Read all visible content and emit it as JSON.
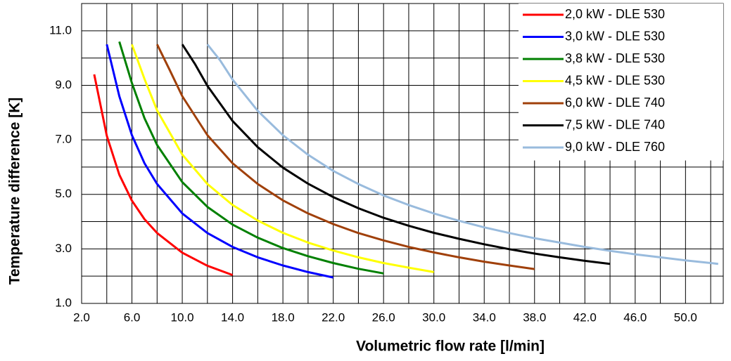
{
  "chart_data": {
    "type": "line",
    "x_label": "Volumetric flow rate [l/min]",
    "y_label": "Temperature difference [K]",
    "xlim": [
      2,
      53
    ],
    "ylim": [
      1,
      12
    ],
    "xticks": [
      {
        "value": 2,
        "label": "2.0"
      },
      {
        "value": 6,
        "label": "6.0"
      },
      {
        "value": 10,
        "label": "10.0"
      },
      {
        "value": 14,
        "label": "14.0"
      },
      {
        "value": 18,
        "label": "18.0"
      },
      {
        "value": 22,
        "label": "22.0"
      },
      {
        "value": 26,
        "label": "26.0"
      },
      {
        "value": 30,
        "label": "30.0"
      },
      {
        "value": 34,
        "label": "34.0"
      },
      {
        "value": 38,
        "label": "38.0"
      },
      {
        "value": 42,
        "label": "42.0"
      },
      {
        "value": 46,
        "label": "46.0"
      },
      {
        "value": 50,
        "label": "50.0"
      }
    ],
    "yticks": [
      {
        "value": 1,
        "label": "1.0"
      },
      {
        "value": 3,
        "label": "3.0"
      },
      {
        "value": 5,
        "label": "5.0"
      },
      {
        "value": 7,
        "label": "7.0"
      },
      {
        "value": 9,
        "label": "9.0"
      },
      {
        "value": 11,
        "label": "11.0"
      }
    ],
    "x_minor_ticks": [
      4,
      8,
      12,
      16,
      20,
      24,
      28,
      32,
      36,
      40,
      44,
      48,
      52
    ],
    "y_minor_ticks": [
      2,
      4,
      6,
      8,
      10
    ],
    "grid": true,
    "legend": "upper right",
    "series": [
      {
        "name": "2,0 kW - DLE 530",
        "color": "#ff0000",
        "x": [
          3,
          4,
          5,
          6,
          7,
          8,
          10,
          12,
          14
        ],
        "values": [
          9.4,
          7.15,
          5.72,
          4.77,
          4.09,
          3.58,
          2.86,
          2.38,
          2.04
        ]
      },
      {
        "name": "3,0 kW - DLE 530",
        "color": "#0000ff",
        "x": [
          4,
          5,
          6,
          7,
          8,
          10,
          12,
          14,
          16,
          18,
          20,
          22
        ],
        "values": [
          10.5,
          8.6,
          7.17,
          6.14,
          5.38,
          4.3,
          3.58,
          3.07,
          2.69,
          2.39,
          2.15,
          1.95
        ]
      },
      {
        "name": "3,8 kW - DLE 530",
        "color": "#008000",
        "x": [
          5,
          6,
          7,
          8,
          10,
          12,
          14,
          16,
          18,
          20,
          22,
          24,
          26
        ],
        "values": [
          10.6,
          9.08,
          7.79,
          6.81,
          5.45,
          4.54,
          3.89,
          3.41,
          3.03,
          2.73,
          2.48,
          2.27,
          2.1
        ]
      },
      {
        "name": "4,5 kW - DLE 530",
        "color": "#ffff00",
        "x": [
          6,
          7,
          8,
          10,
          12,
          14,
          16,
          18,
          20,
          22,
          24,
          26,
          28,
          30
        ],
        "values": [
          10.5,
          9.23,
          8.08,
          6.46,
          5.38,
          4.61,
          4.04,
          3.59,
          3.23,
          2.94,
          2.69,
          2.48,
          2.31,
          2.15
        ]
      },
      {
        "name": "6,0 kW - DLE 740",
        "color": "#a0400a",
        "x": [
          8,
          9,
          10,
          12,
          14,
          16,
          18,
          20,
          22,
          24,
          26,
          28,
          30,
          32,
          34,
          36,
          38
        ],
        "values": [
          10.5,
          9.56,
          8.6,
          7.17,
          6.14,
          5.38,
          4.78,
          4.3,
          3.91,
          3.58,
          3.31,
          3.07,
          2.87,
          2.69,
          2.53,
          2.39,
          2.26
        ]
      },
      {
        "name": "7,5 kW - DLE 740",
        "color": "#000000",
        "x": [
          10,
          11,
          12,
          14,
          16,
          18,
          20,
          22,
          24,
          26,
          28,
          30,
          32,
          34,
          36,
          38,
          40,
          42,
          44
        ],
        "values": [
          10.5,
          9.79,
          8.98,
          7.69,
          6.73,
          5.98,
          5.39,
          4.9,
          4.49,
          4.14,
          3.85,
          3.59,
          3.37,
          3.17,
          2.99,
          2.83,
          2.69,
          2.56,
          2.45
        ]
      },
      {
        "name": "9,0 kW - DLE 760",
        "color": "#99bbdd",
        "x": [
          12,
          13,
          14,
          16,
          18,
          20,
          22,
          24,
          26,
          28,
          30,
          32,
          34,
          36,
          38,
          40,
          42,
          44,
          46,
          48,
          50,
          52.6
        ],
        "values": [
          10.5,
          9.92,
          9.21,
          8.06,
          7.17,
          6.45,
          5.86,
          5.38,
          4.96,
          4.61,
          4.3,
          4.03,
          3.79,
          3.58,
          3.39,
          3.23,
          3.07,
          2.93,
          2.8,
          2.69,
          2.58,
          2.45
        ]
      }
    ]
  }
}
